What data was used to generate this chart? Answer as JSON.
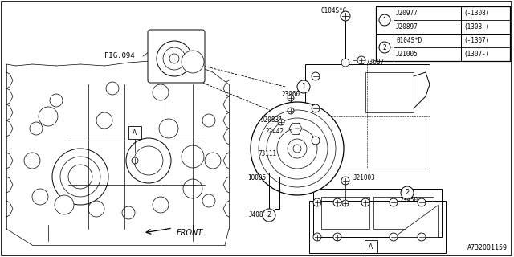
{
  "background_color": "#ffffff",
  "diagram_id": "A732001159",
  "fig094_label": "FIG.094",
  "front_label": "FRONT",
  "table": {
    "rows": [
      [
        "①",
        "J20977",
        "(-1308)"
      ],
      [
        "",
        "J20897",
        "(1308-)"
      ],
      [
        "②",
        "0104S*D",
        "(-1307)"
      ],
      [
        "",
        "J21005",
        "(1307-)"
      ]
    ]
  }
}
